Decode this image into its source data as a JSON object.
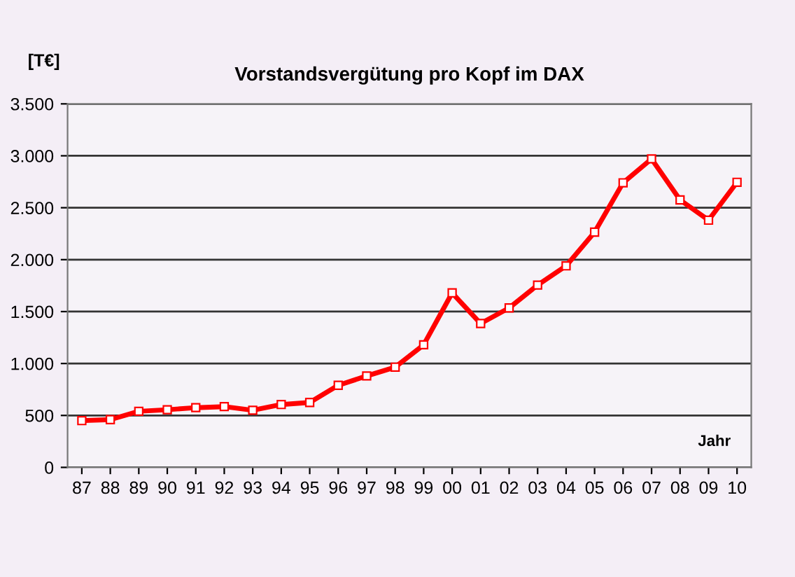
{
  "chart_data": {
    "type": "line",
    "title": "Vorstandsvergütung pro Kopf im DAX",
    "ylabel": "[T€]",
    "xlabel": "Jahr",
    "categories": [
      "87",
      "88",
      "89",
      "90",
      "91",
      "92",
      "93",
      "94",
      "95",
      "96",
      "97",
      "98",
      "99",
      "00",
      "01",
      "02",
      "03",
      "04",
      "05",
      "06",
      "07",
      "08",
      "09",
      "10"
    ],
    "series": [
      {
        "color": "#ff0000",
        "values": [
          450,
          460,
          540,
          555,
          575,
          585,
          550,
          605,
          625,
          790,
          880,
          965,
          1180,
          1680,
          1385,
          1535,
          1755,
          1940,
          2265,
          2740,
          2970,
          2575,
          2380,
          2745
        ]
      }
    ],
    "ylim": [
      0,
      3500
    ],
    "yticks": [
      0,
      500,
      {
        "value": 1000,
        "label": "1.000"
      },
      {
        "value": 1500,
        "label": "1.500"
      },
      {
        "value": 2000,
        "label": "2.000"
      },
      {
        "value": 2500,
        "label": "2.500"
      },
      {
        "value": 3000,
        "label": "3.000"
      },
      {
        "value": 3500,
        "label": "3.500"
      }
    ],
    "grid": "y",
    "marker": "square",
    "line_style": "solid",
    "legend": false
  }
}
